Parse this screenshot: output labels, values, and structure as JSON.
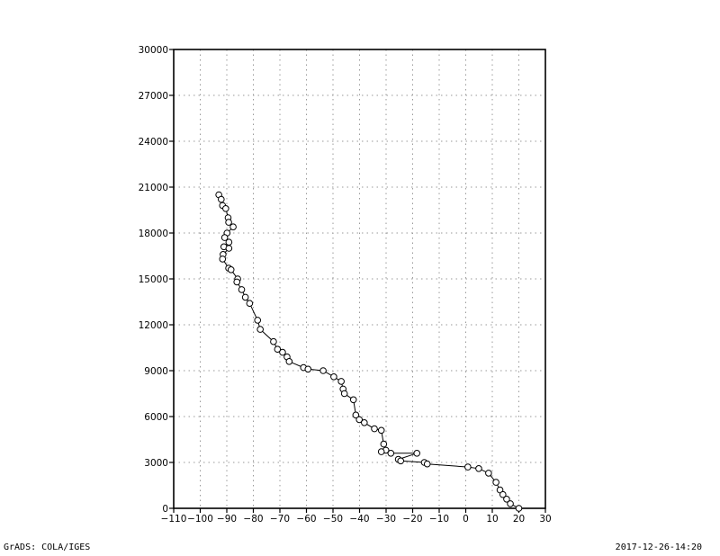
{
  "footer": {
    "left": "GrADS: COLA/IGES",
    "right": "2017-12-26-14:20"
  },
  "chart_data": {
    "type": "line",
    "title": "",
    "xlabel": "",
    "ylabel": "",
    "xlim": [
      -110,
      30
    ],
    "ylim": [
      0,
      30000
    ],
    "grid": true,
    "marker": "open-circle",
    "xticks": [
      -110,
      -100,
      -90,
      -80,
      -70,
      -60,
      -50,
      -40,
      -30,
      -20,
      -10,
      0,
      10,
      20,
      30
    ],
    "yticks": [
      0,
      3000,
      6000,
      9000,
      12000,
      15000,
      18000,
      21000,
      24000,
      27000,
      30000
    ],
    "xtick_labels": [
      "−110",
      "−100",
      "−90",
      "−80",
      "−70",
      "−60",
      "−50",
      "−40",
      "−30",
      "−20",
      "−10",
      "0",
      "10",
      "20",
      "30"
    ],
    "ytick_labels": [
      "0",
      "3000",
      "6000",
      "9000",
      "12000",
      "15000",
      "18000",
      "21000",
      "24000",
      "27000",
      "30000"
    ],
    "series": [
      {
        "line_color": "#000000",
        "points": [
          [
            -93.0,
            20500
          ],
          [
            -92.1,
            20200
          ],
          [
            -91.6,
            19800
          ],
          [
            -90.4,
            19600
          ],
          [
            -89.5,
            19000
          ],
          [
            -89.3,
            18700
          ],
          [
            -87.6,
            18400
          ],
          [
            -89.9,
            18000
          ],
          [
            -90.8,
            17700
          ],
          [
            -89.2,
            17400
          ],
          [
            -91.1,
            17100
          ],
          [
            -89.2,
            17000
          ],
          [
            -91.4,
            16600
          ],
          [
            -91.6,
            16300
          ],
          [
            -89.3,
            15700
          ],
          [
            -88.4,
            15600
          ],
          [
            -85.9,
            15000
          ],
          [
            -86.2,
            14800
          ],
          [
            -84.4,
            14300
          ],
          [
            -83.0,
            13800
          ],
          [
            -81.4,
            13400
          ],
          [
            -78.4,
            12300
          ],
          [
            -77.4,
            11700
          ],
          [
            -72.4,
            10900
          ],
          [
            -70.9,
            10400
          ],
          [
            -69.0,
            10200
          ],
          [
            -67.3,
            9900
          ],
          [
            -66.5,
            9600
          ],
          [
            -61.1,
            9200
          ],
          [
            -59.4,
            9100
          ],
          [
            -53.7,
            9000
          ],
          [
            -49.7,
            8600
          ],
          [
            -46.9,
            8300
          ],
          [
            -46.2,
            7800
          ],
          [
            -45.7,
            7500
          ],
          [
            -42.3,
            7100
          ],
          [
            -41.4,
            6100
          ],
          [
            -40.1,
            5800
          ],
          [
            -38.2,
            5600
          ],
          [
            -34.4,
            5200
          ],
          [
            -31.8,
            5100
          ],
          [
            -30.9,
            4200
          ],
          [
            -30.1,
            3800
          ],
          [
            -31.8,
            3700
          ],
          [
            -28.2,
            3600
          ],
          [
            -18.4,
            3600
          ],
          [
            -25.4,
            3200
          ],
          [
            -24.5,
            3100
          ],
          [
            -15.6,
            3000
          ],
          [
            -14.5,
            2900
          ],
          [
            0.8,
            2700
          ],
          [
            4.9,
            2600
          ],
          [
            8.6,
            2300
          ],
          [
            11.4,
            1700
          ],
          [
            12.9,
            1200
          ],
          [
            14.0,
            900
          ],
          [
            15.4,
            600
          ],
          [
            16.8,
            300
          ],
          [
            20.0,
            0
          ]
        ]
      }
    ]
  }
}
